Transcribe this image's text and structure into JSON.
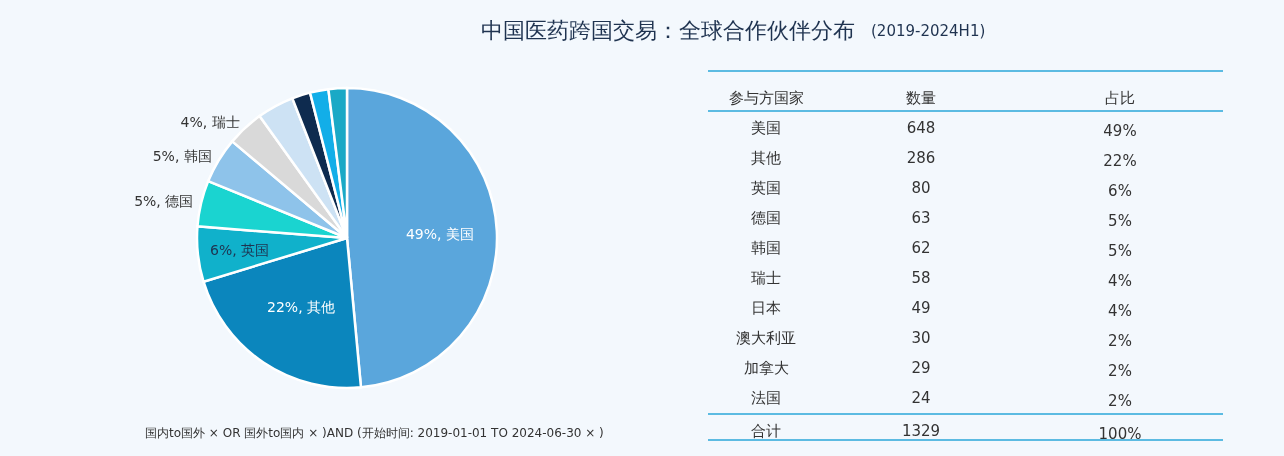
{
  "chart_data": [
    {
      "type": "pie",
      "title": "中国医药跨国交易：全球合作伙伴分布",
      "values": [
        49,
        22,
        6,
        5,
        5,
        4,
        4,
        2,
        2,
        2
      ],
      "colors": [
        "#5aa6dc",
        "#0b86bd",
        "#10b1cb",
        "#1ad4d0",
        "#8ec3ea",
        "#d9d9d9",
        "#cde2f4",
        "#0e2b4f",
        "#12aee8",
        "#1aa9c6"
      ],
      "value_labels": [
        "49%, 美国",
        "22%, 其他",
        "6%, 英国",
        "5%, 德国",
        "5%, 韩国",
        "4%, 瑞士",
        null,
        null,
        null,
        null
      ],
      "annotations": [
        "国内to国外 × OR 国外to国内 × )AND (开始时间: 2019-01-01 TO 2024-06-30 × )"
      ]
    },
    {
      "type": "other",
      "subtitle": "(2019-2024H1)",
      "annotations": [
        "参与方国家"
      ],
      "categories": [
        "美国",
        "其他",
        "英国",
        "德国",
        "韩国",
        "瑞士",
        "日本",
        "澳大利亚",
        "加拿大",
        "法国",
        "合计"
      ],
      "series": [
        {
          "name": "数量",
          "values": [
            648,
            286,
            80,
            63,
            62,
            58,
            49,
            30,
            29,
            24,
            1329
          ],
          "data_labels": true
        },
        {
          "name": "占比",
          "values": [
            49,
            22,
            6,
            5,
            5,
            4,
            4,
            2,
            2,
            2,
            100
          ],
          "value_labels": [
            "49%",
            "22%",
            "6%",
            "5%",
            "5%",
            "4%",
            "4%",
            "2%",
            "2%",
            "2%",
            "100%"
          ]
        }
      ]
    }
  ]
}
